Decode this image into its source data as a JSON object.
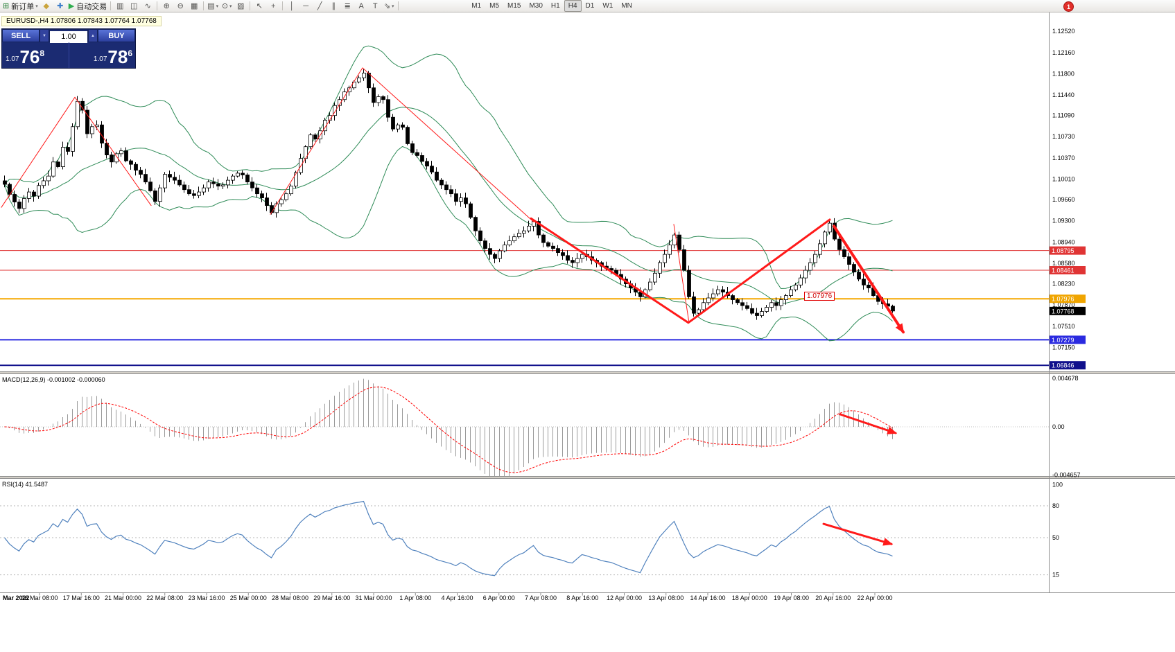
{
  "window": {
    "badge": "1"
  },
  "toolbar": {
    "items": [
      {
        "name": "new-order-button",
        "glyph": "⊞",
        "color": "#1d7a2f",
        "label": "新订单",
        "caret": "▾"
      },
      {
        "name": "metaeditor-button",
        "glyph": "◆",
        "color": "#caa43c"
      },
      {
        "name": "indicators-button",
        "glyph": "✚",
        "color": "#3c7dca"
      },
      {
        "name": "autotrading-button",
        "glyph": "▶",
        "color": "#2fae4f",
        "label": "自动交易"
      },
      {
        "sep": true
      },
      {
        "name": "bar-chart-button",
        "glyph": "▥"
      },
      {
        "name": "candlestick-chart-button",
        "glyph": "◫"
      },
      {
        "name": "line-chart-button",
        "glyph": "∿"
      },
      {
        "sep": true
      },
      {
        "name": "zoom-in-button",
        "glyph": "⊕"
      },
      {
        "name": "zoom-out-button",
        "glyph": "⊖"
      },
      {
        "name": "tile-windows-button",
        "glyph": "▦"
      },
      {
        "sep": true
      },
      {
        "name": "templates-button",
        "glyph": "▤",
        "caret": "▾"
      },
      {
        "name": "period-button",
        "glyph": "⊙",
        "caret": "▾"
      },
      {
        "name": "print-button",
        "glyph": "▨"
      },
      {
        "sep": true
      },
      {
        "name": "cursor-button",
        "glyph": "↖"
      },
      {
        "name": "crosshair-button",
        "glyph": "+"
      },
      {
        "sep": true
      },
      {
        "name": "vertical-line-button",
        "glyph": "│"
      },
      {
        "name": "horizontal-line-button",
        "glyph": "─"
      },
      {
        "name": "trendline-button",
        "glyph": "╱"
      },
      {
        "name": "equidistant-channel-button",
        "glyph": "∥"
      },
      {
        "name": "fibonacci-button",
        "glyph": "≣"
      },
      {
        "name": "text-button",
        "glyph": "A"
      },
      {
        "name": "text-label-button",
        "glyph": "T"
      },
      {
        "name": "arrows-button",
        "glyph": "⇘",
        "caret": "▾"
      },
      {
        "sep": true
      }
    ],
    "timeframes": [
      {
        "label": "M1"
      },
      {
        "label": "M5"
      },
      {
        "label": "M15"
      },
      {
        "label": "M30"
      },
      {
        "label": "H1"
      },
      {
        "label": "H4"
      },
      {
        "label": "D1"
      },
      {
        "label": "W1"
      },
      {
        "label": "MN"
      }
    ],
    "active_timeframe": "H4"
  },
  "chart": {
    "title": "EURUSD-,H4  1.07806 1.07843 1.07764 1.07768"
  },
  "trade_panel": {
    "sell_label": "SELL",
    "buy_label": "BUY",
    "lot_value": "1.00",
    "lot_down_glyph": "▼",
    "lot_up_glyph": "▲",
    "sell_price": {
      "prefix": "1.07",
      "big": "76",
      "sup": "8"
    },
    "buy_price": {
      "prefix": "1.07",
      "big": "78",
      "sup": "6"
    }
  },
  "price_axis": {
    "ticks": [
      "1.12520",
      "1.12160",
      "1.11800",
      "1.11440",
      "1.11090",
      "1.10730",
      "1.10370",
      "1.10010",
      "1.09660",
      "1.09300",
      "1.08940",
      "1.08580",
      "1.08230",
      "1.07870",
      "1.07510",
      "1.07150"
    ]
  },
  "time_axis": {
    "labels": [
      "Mar 2022",
      "16 Mar 08:00",
      "17 Mar 16:00",
      "21 Mar 00:00",
      "22 Mar 08:00",
      "23 Mar 16:00",
      "25 Mar 00:00",
      "28 Mar 08:00",
      "29 Mar 16:00",
      "31 Mar 00:00",
      "1 Apr 08:00",
      "4 Apr 16:00",
      "6 Apr 00:00",
      "7 Apr 08:00",
      "8 Apr 16:00",
      "12 Apr 00:00",
      "13 Apr 08:00",
      "14 Apr 16:00",
      "18 Apr 00:00",
      "19 Apr 08:00",
      "20 Apr 16:00",
      "22 Apr 00:00"
    ]
  },
  "macd_panel": {
    "title": "MACD(12,26,9) -0.001002 -0.000060",
    "axis_labels": [
      "0.004678",
      "0.00",
      "-0.004657"
    ],
    "axis_values": [
      0.004678,
      0,
      -0.004657
    ]
  },
  "rsi_panel": {
    "title": "RSI(14) 41.5487",
    "axis_labels": [
      "100",
      "80",
      "50",
      "15"
    ],
    "axis_values": [
      100,
      80,
      50,
      15
    ],
    "dashed_levels": [
      80,
      50,
      15
    ]
  },
  "chart_data": {
    "type": "candlestick",
    "symbol": "EURUSD-",
    "timeframe": "H4",
    "ohlc_current": {
      "open": "1.07806",
      "high": "1.07843",
      "low": "1.07764",
      "close": "1.07768"
    },
    "indicators": {
      "bollinger": {
        "period": 20,
        "deviation": 2
      },
      "macd": {
        "fast": 12,
        "slow": 26,
        "signal": 9
      },
      "rsi": {
        "period": 14
      }
    },
    "closes": [
      1.0992,
      1.0975,
      1.0962,
      1.0951,
      1.0968,
      1.0979,
      1.0972,
      1.099,
      1.0998,
      1.1006,
      1.103,
      1.1022,
      1.1055,
      1.1048,
      1.109,
      1.1133,
      1.1118,
      1.1078,
      1.109,
      1.1093,
      1.1062,
      1.1042,
      1.103,
      1.1044,
      1.1049,
      1.1032,
      1.1026,
      1.1016,
      1.1009,
      1.0996,
      1.0981,
      1.0963,
      1.0986,
      1.1009,
      1.1004,
      1.0999,
      1.0991,
      1.0983,
      1.0976,
      1.0973,
      1.0979,
      1.0986,
      1.0996,
      1.0993,
      1.0989,
      1.0991,
      1.0999,
      1.1006,
      1.1011,
      1.1008,
      1.0996,
      1.0986,
      1.0976,
      1.0969,
      1.0956,
      1.0944,
      1.0959,
      1.0966,
      1.0976,
      1.0989,
      1.1012,
      1.1036,
      1.1056,
      1.1076,
      1.1069,
      1.1083,
      1.1101,
      1.1109,
      1.1126,
      1.1136,
      1.1149,
      1.1156,
      1.1166,
      1.1173,
      1.1181,
      1.1156,
      1.1131,
      1.1141,
      1.1136,
      1.1106,
      1.1086,
      1.1093,
      1.1089,
      1.1061,
      1.1046,
      1.1041,
      1.1031,
      1.1023,
      1.1013,
      1.0999,
      1.0991,
      1.0983,
      1.0976,
      1.0963,
      1.0969,
      1.0959,
      1.0936,
      1.0913,
      1.0896,
      1.0883,
      1.0873,
      1.0866,
      1.0879,
      1.0889,
      1.0896,
      1.0903,
      1.0909,
      1.0913,
      1.0921,
      1.0929,
      1.0906,
      1.0893,
      1.0887,
      1.0883,
      1.0876,
      1.0871,
      1.0863,
      1.0859,
      1.0866,
      1.0873,
      1.0869,
      1.0863,
      1.0859,
      1.0853,
      1.0849,
      1.0846,
      1.0839,
      1.0831,
      1.0823,
      1.0816,
      1.0809,
      1.0801,
      1.0813,
      1.0826,
      1.0841,
      1.0859,
      1.0873,
      1.0889,
      1.0906,
      1.0881,
      1.0846,
      1.0801,
      1.0773,
      1.0779,
      1.0791,
      1.0799,
      1.0806,
      1.0813,
      1.0809,
      1.0803,
      1.0796,
      1.0791,
      1.0786,
      1.0781,
      1.0773,
      1.0769,
      1.0776,
      1.0783,
      1.0791,
      1.0786,
      1.0796,
      1.0803,
      1.0813,
      1.0821,
      1.0833,
      1.0846,
      1.0859,
      1.0873,
      1.0891,
      1.0911,
      1.0926,
      1.0899,
      1.0881,
      1.0869,
      1.0856,
      1.0843,
      1.0831,
      1.0821,
      1.0816,
      1.0803,
      1.0793,
      1.0789,
      1.0785,
      1.07768
    ]
  },
  "annotations": {
    "price_lines": [
      {
        "price": 1.08795,
        "color": "#e03434",
        "width": 1,
        "tag": "1.08795",
        "tag_color": "#e03434"
      },
      {
        "price": 1.08461,
        "color": "#e03434",
        "width": 1,
        "tag": "1.08461",
        "tag_color": "#e03434"
      },
      {
        "price": 1.07976,
        "color": "#f5a800",
        "width": 2,
        "tag": "1.07976",
        "tag_color": "#f0a500"
      },
      {
        "price": 1.07279,
        "color": "#2a2ae0",
        "width": 2,
        "tag": "1.07279",
        "tag_color": "#2a2ae0"
      },
      {
        "price": 1.06846,
        "color": "#10108c",
        "width": 2,
        "tag": "1.06846",
        "tag_color": "#10108c"
      }
    ],
    "current_price_tag": {
      "price": 1.07768,
      "label": "1.07768",
      "bg": "#000000"
    },
    "floating_label": {
      "text": "1.07976"
    },
    "trend_lines": [
      {
        "points": [
          [
            2,
            1.0953
          ],
          [
            108,
            1.114
          ],
          [
            218,
            1.0956
          ]
        ],
        "width": 1
      },
      {
        "points": [
          [
            390,
            1.0941
          ],
          [
            523,
            1.119
          ],
          [
            770,
            1.0928
          ]
        ],
        "width": 1
      },
      {
        "points": [
          [
            972,
            1.0924
          ],
          [
            994,
            1.0757
          ]
        ],
        "width": 1
      },
      {
        "points": [
          [
            766,
            1.0934
          ],
          [
            993,
            1.0757
          ],
          [
            1197,
            1.0932
          ]
        ],
        "width": 3
      },
      {
        "points": [
          [
            1203,
            1.0921
          ],
          [
            1303,
            1.0741
          ]
        ],
        "width": 4,
        "arrow": true
      }
    ],
    "macd_arrow": {
      "points": [
        [
          1212,
          0.0012
        ],
        [
          1292,
          -0.0006
        ]
      ],
      "width": 3,
      "arrow": true
    },
    "rsi_arrow": {
      "points": [
        [
          1188,
          63
        ],
        [
          1286,
          44
        ]
      ],
      "width": 3,
      "arrow": true
    }
  },
  "colors": {
    "bollinger": "#2e8b57",
    "candle_up": "#ffffff",
    "candle_down": "#000000",
    "trend": "#ff1a1a",
    "macd_hist": "#9a9a9a",
    "macd_signal": "#ff0000",
    "rsi_line": "#4f81bd"
  }
}
